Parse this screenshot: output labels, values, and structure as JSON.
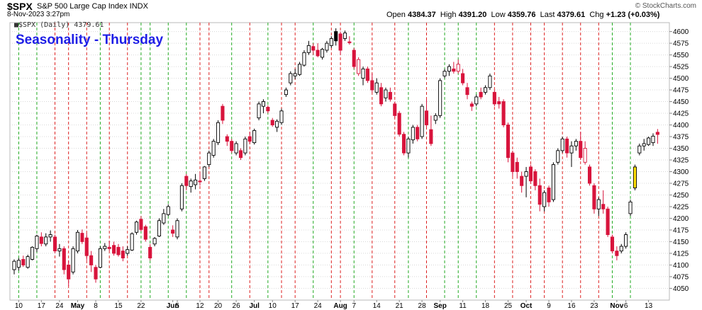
{
  "header": {
    "ticker": "$SPX",
    "company": "S&P 500 Large Cap Index INDX",
    "date": "8-Nov-2023 3:27pm",
    "open_label": "Open",
    "open": "4384.37",
    "high_label": "High",
    "high": "4391.20",
    "low_label": "Low",
    "low": "4359.76",
    "last_label": "Last",
    "last": "4379.61",
    "chg_label": "Chg",
    "chg": "+1.23 (+0.03%)",
    "watermark": "© StockCharts.com",
    "series_label": "■$SPX (Daily) 4379.61"
  },
  "colors": {
    "up": "#000000",
    "down": "#d8143c",
    "title": "#1e1ee6",
    "green_line": "#22aa22",
    "red_line": "#dd2222",
    "grid": "#d8d8d8",
    "highlight": "#ffe000"
  },
  "chart_data": {
    "type": "candlestick",
    "title": "Seasonality - Thursday",
    "ylim": [
      4040,
      4610
    ],
    "y_ticks": [
      4050,
      4075,
      4100,
      4125,
      4150,
      4175,
      4200,
      4225,
      4250,
      4275,
      4300,
      4325,
      4350,
      4375,
      4400,
      4425,
      4450,
      4475,
      4500,
      4525,
      4550,
      4575,
      4600
    ],
    "x_labels": [
      {
        "i": 1,
        "t": "10",
        "bold": false
      },
      {
        "i": 6,
        "t": "17",
        "bold": false
      },
      {
        "i": 10,
        "t": "24",
        "bold": false
      },
      {
        "i": 14,
        "t": "May",
        "bold": true
      },
      {
        "i": 18,
        "t": "8",
        "bold": false
      },
      {
        "i": 23,
        "t": "15",
        "bold": false
      },
      {
        "i": 28,
        "t": "22",
        "bold": false
      },
      {
        "i": 35,
        "t": "Jun",
        "bold": true
      },
      {
        "i": 36,
        "t": "5",
        "bold": false
      },
      {
        "i": 41,
        "t": "12",
        "bold": false
      },
      {
        "i": 45,
        "t": "20",
        "bold": false
      },
      {
        "i": 49,
        "t": "26",
        "bold": false
      },
      {
        "i": 53,
        "t": "Jul",
        "bold": true
      },
      {
        "i": 57,
        "t": "10",
        "bold": false
      },
      {
        "i": 62,
        "t": "17",
        "bold": false
      },
      {
        "i": 67,
        "t": "24",
        "bold": false
      },
      {
        "i": 72,
        "t": "Aug",
        "bold": true
      },
      {
        "i": 75,
        "t": "7",
        "bold": false
      },
      {
        "i": 80,
        "t": "14",
        "bold": false
      },
      {
        "i": 85,
        "t": "21",
        "bold": false
      },
      {
        "i": 90,
        "t": "28",
        "bold": false
      },
      {
        "i": 94,
        "t": "Sep",
        "bold": true
      },
      {
        "i": 99,
        "t": "11",
        "bold": false
      },
      {
        "i": 104,
        "t": "18",
        "bold": false
      },
      {
        "i": 109,
        "t": "25",
        "bold": false
      },
      {
        "i": 113,
        "t": "Oct",
        "bold": true
      },
      {
        "i": 118,
        "t": "9",
        "bold": false
      },
      {
        "i": 123,
        "t": "16",
        "bold": false
      },
      {
        "i": 128,
        "t": "23",
        "bold": false
      },
      {
        "i": 133,
        "t": "Nov",
        "bold": true
      },
      {
        "i": 135,
        "t": "6",
        "bold": false
      },
      {
        "i": 140,
        "t": "13",
        "bold": false
      }
    ],
    "candles": [
      {
        "o": 4090,
        "h": 4112,
        "l": 4080,
        "c": 4108
      },
      {
        "o": 4095,
        "h": 4115,
        "l": 4088,
        "c": 4110
      },
      {
        "o": 4112,
        "h": 4120,
        "l": 4096,
        "c": 4100
      },
      {
        "o": 4095,
        "h": 4122,
        "l": 4092,
        "c": 4118
      },
      {
        "o": 4112,
        "h": 4140,
        "l": 4110,
        "c": 4138
      },
      {
        "o": 4135,
        "h": 4165,
        "l": 4128,
        "c": 4162
      },
      {
        "o": 4160,
        "h": 4170,
        "l": 4140,
        "c": 4146
      },
      {
        "o": 4145,
        "h": 4168,
        "l": 4140,
        "c": 4160
      },
      {
        "o": 4160,
        "h": 4174,
        "l": 4150,
        "c": 4165
      },
      {
        "o": 4160,
        "h": 4165,
        "l": 4125,
        "c": 4130
      },
      {
        "o": 4130,
        "h": 4145,
        "l": 4118,
        "c": 4135
      },
      {
        "o": 4135,
        "h": 4140,
        "l": 4080,
        "c": 4090
      },
      {
        "o": 4100,
        "h": 4110,
        "l": 4055,
        "c": 4070
      },
      {
        "o": 4085,
        "h": 4140,
        "l": 4080,
        "c": 4135
      },
      {
        "o": 4130,
        "h": 4175,
        "l": 4125,
        "c": 4170
      },
      {
        "o": 4168,
        "h": 4176,
        "l": 4145,
        "c": 4150
      },
      {
        "o": 4158,
        "h": 4168,
        "l": 4110,
        "c": 4120
      },
      {
        "o": 4120,
        "h": 4130,
        "l": 4085,
        "c": 4100
      },
      {
        "o": 4095,
        "h": 4100,
        "l": 4062,
        "c": 4070
      },
      {
        "o": 4095,
        "h": 4140,
        "l": 4093,
        "c": 4135
      },
      {
        "o": 4135,
        "h": 4147,
        "l": 4130,
        "c": 4140
      },
      {
        "o": 4138,
        "h": 4152,
        "l": 4130,
        "c": 4135
      },
      {
        "o": 4142,
        "h": 4150,
        "l": 4120,
        "c": 4125
      },
      {
        "o": 4138,
        "h": 4145,
        "l": 4118,
        "c": 4122
      },
      {
        "o": 4130,
        "h": 4140,
        "l": 4108,
        "c": 4115
      },
      {
        "o": 4125,
        "h": 4140,
        "l": 4120,
        "c": 4133
      },
      {
        "o": 4132,
        "h": 4170,
        "l": 4130,
        "c": 4167
      },
      {
        "o": 4170,
        "h": 4195,
        "l": 4165,
        "c": 4192
      },
      {
        "o": 4198,
        "h": 4205,
        "l": 4172,
        "c": 4176
      },
      {
        "o": 4182,
        "h": 4186,
        "l": 4150,
        "c": 4155
      },
      {
        "o": 4138,
        "h": 4145,
        "l": 4110,
        "c": 4115
      },
      {
        "o": 4145,
        "h": 4160,
        "l": 4140,
        "c": 4157
      },
      {
        "o": 4162,
        "h": 4200,
        "l": 4160,
        "c": 4195
      },
      {
        "o": 4190,
        "h": 4220,
        "l": 4186,
        "c": 4210
      },
      {
        "o": 4208,
        "h": 4230,
        "l": 4205,
        "c": 4225
      },
      {
        "o": 4175,
        "h": 4185,
        "l": 4160,
        "c": 4168
      },
      {
        "o": 4160,
        "h": 4200,
        "l": 4155,
        "c": 4195
      },
      {
        "o": 4220,
        "h": 4275,
        "l": 4215,
        "c": 4270
      },
      {
        "o": 4290,
        "h": 4295,
        "l": 4260,
        "c": 4270
      },
      {
        "o": 4268,
        "h": 4285,
        "l": 4255,
        "c": 4280
      },
      {
        "o": 4272,
        "h": 4295,
        "l": 4262,
        "c": 4282
      },
      {
        "o": 4280,
        "h": 4298,
        "l": 4270,
        "c": 4278
      },
      {
        "o": 4285,
        "h": 4312,
        "l": 4280,
        "c": 4310
      },
      {
        "o": 4315,
        "h": 4345,
        "l": 4310,
        "c": 4340
      },
      {
        "o": 4335,
        "h": 4370,
        "l": 4330,
        "c": 4365
      },
      {
        "o": 4362,
        "h": 4410,
        "l": 4357,
        "c": 4405
      },
      {
        "o": 4440,
        "h": 4445,
        "l": 4402,
        "c": 4410
      },
      {
        "o": 4375,
        "h": 4380,
        "l": 4355,
        "c": 4365
      },
      {
        "o": 4365,
        "h": 4370,
        "l": 4340,
        "c": 4345
      },
      {
        "o": 4340,
        "h": 4365,
        "l": 4335,
        "c": 4360
      },
      {
        "o": 4345,
        "h": 4350,
        "l": 4325,
        "c": 4330
      },
      {
        "o": 4340,
        "h": 4375,
        "l": 4335,
        "c": 4370
      },
      {
        "o": 4375,
        "h": 4385,
        "l": 4360,
        "c": 4365
      },
      {
        "o": 4362,
        "h": 4392,
        "l": 4358,
        "c": 4388
      },
      {
        "o": 4415,
        "h": 4450,
        "l": 4410,
        "c": 4445
      },
      {
        "o": 4440,
        "h": 4455,
        "l": 4425,
        "c": 4450
      },
      {
        "o": 4438,
        "h": 4442,
        "l": 4425,
        "c": 4430
      },
      {
        "o": 4410,
        "h": 4415,
        "l": 4396,
        "c": 4400
      },
      {
        "o": 4395,
        "h": 4412,
        "l": 4385,
        "c": 4408
      },
      {
        "o": 4405,
        "h": 4435,
        "l": 4400,
        "c": 4430
      },
      {
        "o": 4465,
        "h": 4480,
        "l": 4460,
        "c": 4475
      },
      {
        "o": 4490,
        "h": 4515,
        "l": 4485,
        "c": 4510
      },
      {
        "o": 4505,
        "h": 4520,
        "l": 4498,
        "c": 4510
      },
      {
        "o": 4508,
        "h": 4535,
        "l": 4505,
        "c": 4530
      },
      {
        "o": 4528,
        "h": 4560,
        "l": 4525,
        "c": 4555
      },
      {
        "o": 4555,
        "h": 4580,
        "l": 4550,
        "c": 4570
      },
      {
        "o": 4568,
        "h": 4575,
        "l": 4550,
        "c": 4560
      },
      {
        "o": 4560,
        "h": 4575,
        "l": 4545,
        "c": 4548
      },
      {
        "o": 4545,
        "h": 4565,
        "l": 4540,
        "c": 4562
      },
      {
        "o": 4560,
        "h": 4580,
        "l": 4555,
        "c": 4575
      },
      {
        "o": 4570,
        "h": 4590,
        "l": 4565,
        "c": 4585
      },
      {
        "o": 4580,
        "h": 4607,
        "l": 4570,
        "c": 4600
      },
      {
        "o": 4595,
        "h": 4600,
        "l": 4550,
        "c": 4560
      },
      {
        "o": 4585,
        "h": 4602,
        "l": 4580,
        "c": 4597
      },
      {
        "o": 4578,
        "h": 4590,
        "l": 4572,
        "c": 4576
      },
      {
        "o": 4560,
        "h": 4565,
        "l": 4520,
        "c": 4525
      },
      {
        "o": 4540,
        "h": 4545,
        "l": 4505,
        "c": 4510
      },
      {
        "o": 4500,
        "h": 4525,
        "l": 4485,
        "c": 4520
      },
      {
        "o": 4520,
        "h": 4525,
        "l": 4490,
        "c": 4495
      },
      {
        "o": 4495,
        "h": 4510,
        "l": 4470,
        "c": 4475
      },
      {
        "o": 4470,
        "h": 4500,
        "l": 4465,
        "c": 4490
      },
      {
        "o": 4480,
        "h": 4490,
        "l": 4440,
        "c": 4445
      },
      {
        "o": 4458,
        "h": 4480,
        "l": 4450,
        "c": 4475
      },
      {
        "o": 4470,
        "h": 4480,
        "l": 4450,
        "c": 4455
      },
      {
        "o": 4445,
        "h": 4450,
        "l": 4415,
        "c": 4420
      },
      {
        "o": 4425,
        "h": 4430,
        "l": 4375,
        "c": 4380
      },
      {
        "o": 4380,
        "h": 4385,
        "l": 4335,
        "c": 4340
      },
      {
        "o": 4340,
        "h": 4375,
        "l": 4330,
        "c": 4370
      },
      {
        "o": 4368,
        "h": 4400,
        "l": 4360,
        "c": 4395
      },
      {
        "o": 4395,
        "h": 4400,
        "l": 4365,
        "c": 4370
      },
      {
        "o": 4375,
        "h": 4445,
        "l": 4370,
        "c": 4440
      },
      {
        "o": 4430,
        "h": 4455,
        "l": 4395,
        "c": 4400
      },
      {
        "o": 4390,
        "h": 4420,
        "l": 4355,
        "c": 4360
      },
      {
        "o": 4410,
        "h": 4425,
        "l": 4402,
        "c": 4420
      },
      {
        "o": 4420,
        "h": 4500,
        "l": 4415,
        "c": 4495
      },
      {
        "o": 4505,
        "h": 4520,
        "l": 4500,
        "c": 4515
      },
      {
        "o": 4515,
        "h": 4530,
        "l": 4505,
        "c": 4525
      },
      {
        "o": 4520,
        "h": 4535,
        "l": 4510,
        "c": 4515
      },
      {
        "o": 4530,
        "h": 4540,
        "l": 4510,
        "c": 4515
      },
      {
        "o": 4510,
        "h": 4520,
        "l": 4485,
        "c": 4490
      },
      {
        "o": 4480,
        "h": 4490,
        "l": 4455,
        "c": 4465
      },
      {
        "o": 4445,
        "h": 4450,
        "l": 4430,
        "c": 4440
      },
      {
        "o": 4445,
        "h": 4465,
        "l": 4440,
        "c": 4460
      },
      {
        "o": 4470,
        "h": 4480,
        "l": 4455,
        "c": 4460
      },
      {
        "o": 4470,
        "h": 4485,
        "l": 4465,
        "c": 4480
      },
      {
        "o": 4480,
        "h": 4510,
        "l": 4475,
        "c": 4505
      },
      {
        "o": 4470,
        "h": 4475,
        "l": 4440,
        "c": 4445
      },
      {
        "o": 4450,
        "h": 4460,
        "l": 4435,
        "c": 4445
      },
      {
        "o": 4450,
        "h": 4455,
        "l": 4395,
        "c": 4400
      },
      {
        "o": 4400,
        "h": 4405,
        "l": 4320,
        "c": 4330
      },
      {
        "o": 4340,
        "h": 4345,
        "l": 4290,
        "c": 4300
      },
      {
        "o": 4320,
        "h": 4330,
        "l": 4285,
        "c": 4300
      },
      {
        "o": 4290,
        "h": 4300,
        "l": 4255,
        "c": 4270
      },
      {
        "o": 4290,
        "h": 4310,
        "l": 4245,
        "c": 4300
      },
      {
        "o": 4310,
        "h": 4315,
        "l": 4275,
        "c": 4280
      },
      {
        "o": 4300,
        "h": 4305,
        "l": 4260,
        "c": 4270
      },
      {
        "o": 4270,
        "h": 4285,
        "l": 4215,
        "c": 4230
      },
      {
        "o": 4225,
        "h": 4260,
        "l": 4215,
        "c": 4255
      },
      {
        "o": 4265,
        "h": 4270,
        "l": 4225,
        "c": 4235
      },
      {
        "o": 4240,
        "h": 4320,
        "l": 4235,
        "c": 4315
      },
      {
        "o": 4320,
        "h": 4350,
        "l": 4315,
        "c": 4345
      },
      {
        "o": 4345,
        "h": 4375,
        "l": 4340,
        "c": 4370
      },
      {
        "o": 4370,
        "h": 4375,
        "l": 4330,
        "c": 4340
      },
      {
        "o": 4340,
        "h": 4365,
        "l": 4310,
        "c": 4355
      },
      {
        "o": 4355,
        "h": 4370,
        "l": 4345,
        "c": 4365
      },
      {
        "o": 4365,
        "h": 4385,
        "l": 4325,
        "c": 4330
      },
      {
        "o": 4350,
        "h": 4365,
        "l": 4315,
        "c": 4320
      },
      {
        "o": 4310,
        "h": 4315,
        "l": 4270,
        "c": 4275
      },
      {
        "o": 4270,
        "h": 4275,
        "l": 4210,
        "c": 4220
      },
      {
        "o": 4220,
        "h": 4245,
        "l": 4205,
        "c": 4240
      },
      {
        "o": 4230,
        "h": 4260,
        "l": 4210,
        "c": 4220
      },
      {
        "o": 4220,
        "h": 4225,
        "l": 4160,
        "c": 4165
      },
      {
        "o": 4160,
        "h": 4165,
        "l": 4125,
        "c": 4130
      },
      {
        "o": 4130,
        "h": 4140,
        "l": 4110,
        "c": 4120
      },
      {
        "o": 4130,
        "h": 4145,
        "l": 4125,
        "c": 4140
      },
      {
        "o": 4140,
        "h": 4170,
        "l": 4135,
        "c": 4165
      },
      {
        "o": 4210,
        "h": 4240,
        "l": 4205,
        "c": 4235
      },
      {
        "o": 4265,
        "h": 4315,
        "l": 4260,
        "c": 4310
      },
      {
        "o": 4340,
        "h": 4360,
        "l": 4335,
        "c": 4355
      },
      {
        "o": 4355,
        "h": 4370,
        "l": 4345,
        "c": 4360
      },
      {
        "o": 4358,
        "h": 4375,
        "l": 4355,
        "c": 4372
      },
      {
        "o": 4362,
        "h": 4382,
        "l": 4355,
        "c": 4376
      },
      {
        "o": 4384.37,
        "h": 4391.2,
        "l": 4359.76,
        "c": 4379.61
      }
    ],
    "filled_up_indices": [
      66,
      71,
      107,
      130
    ],
    "hollow_down_indices": [
      68,
      76,
      98,
      126
    ],
    "highlight_index": 137,
    "vlines": [
      {
        "i": 1,
        "c": "g"
      },
      {
        "i": 5,
        "c": "g"
      },
      {
        "i": 9,
        "c": "r"
      },
      {
        "i": 12,
        "c": "r"
      },
      {
        "i": 16,
        "c": "r"
      },
      {
        "i": 19,
        "c": "g"
      },
      {
        "i": 21,
        "c": "r"
      },
      {
        "i": 25,
        "c": "r"
      },
      {
        "i": 28,
        "c": "g"
      },
      {
        "i": 30,
        "c": "g"
      },
      {
        "i": 34,
        "c": "g"
      },
      {
        "i": 38,
        "c": "g"
      },
      {
        "i": 41,
        "c": "r"
      },
      {
        "i": 43,
        "c": "r"
      },
      {
        "i": 48,
        "c": "g"
      },
      {
        "i": 52,
        "c": "r"
      },
      {
        "i": 56,
        "c": "g"
      },
      {
        "i": 59,
        "c": "r"
      },
      {
        "i": 62,
        "c": "r"
      },
      {
        "i": 66,
        "c": "g"
      },
      {
        "i": 70,
        "c": "r"
      },
      {
        "i": 72,
        "c": "r"
      },
      {
        "i": 75,
        "c": "g"
      },
      {
        "i": 79,
        "c": "r"
      },
      {
        "i": 84,
        "c": "r"
      },
      {
        "i": 87,
        "c": "g"
      },
      {
        "i": 91,
        "c": "r"
      },
      {
        "i": 95,
        "c": "g"
      },
      {
        "i": 98,
        "c": "g"
      },
      {
        "i": 102,
        "c": "g"
      },
      {
        "i": 106,
        "c": "r"
      },
      {
        "i": 110,
        "c": "r"
      },
      {
        "i": 114,
        "c": "r"
      },
      {
        "i": 117,
        "c": "r"
      },
      {
        "i": 121,
        "c": "r"
      },
      {
        "i": 125,
        "c": "r"
      },
      {
        "i": 129,
        "c": "r"
      },
      {
        "i": 132,
        "c": "g"
      },
      {
        "i": 136,
        "c": "g"
      }
    ]
  }
}
